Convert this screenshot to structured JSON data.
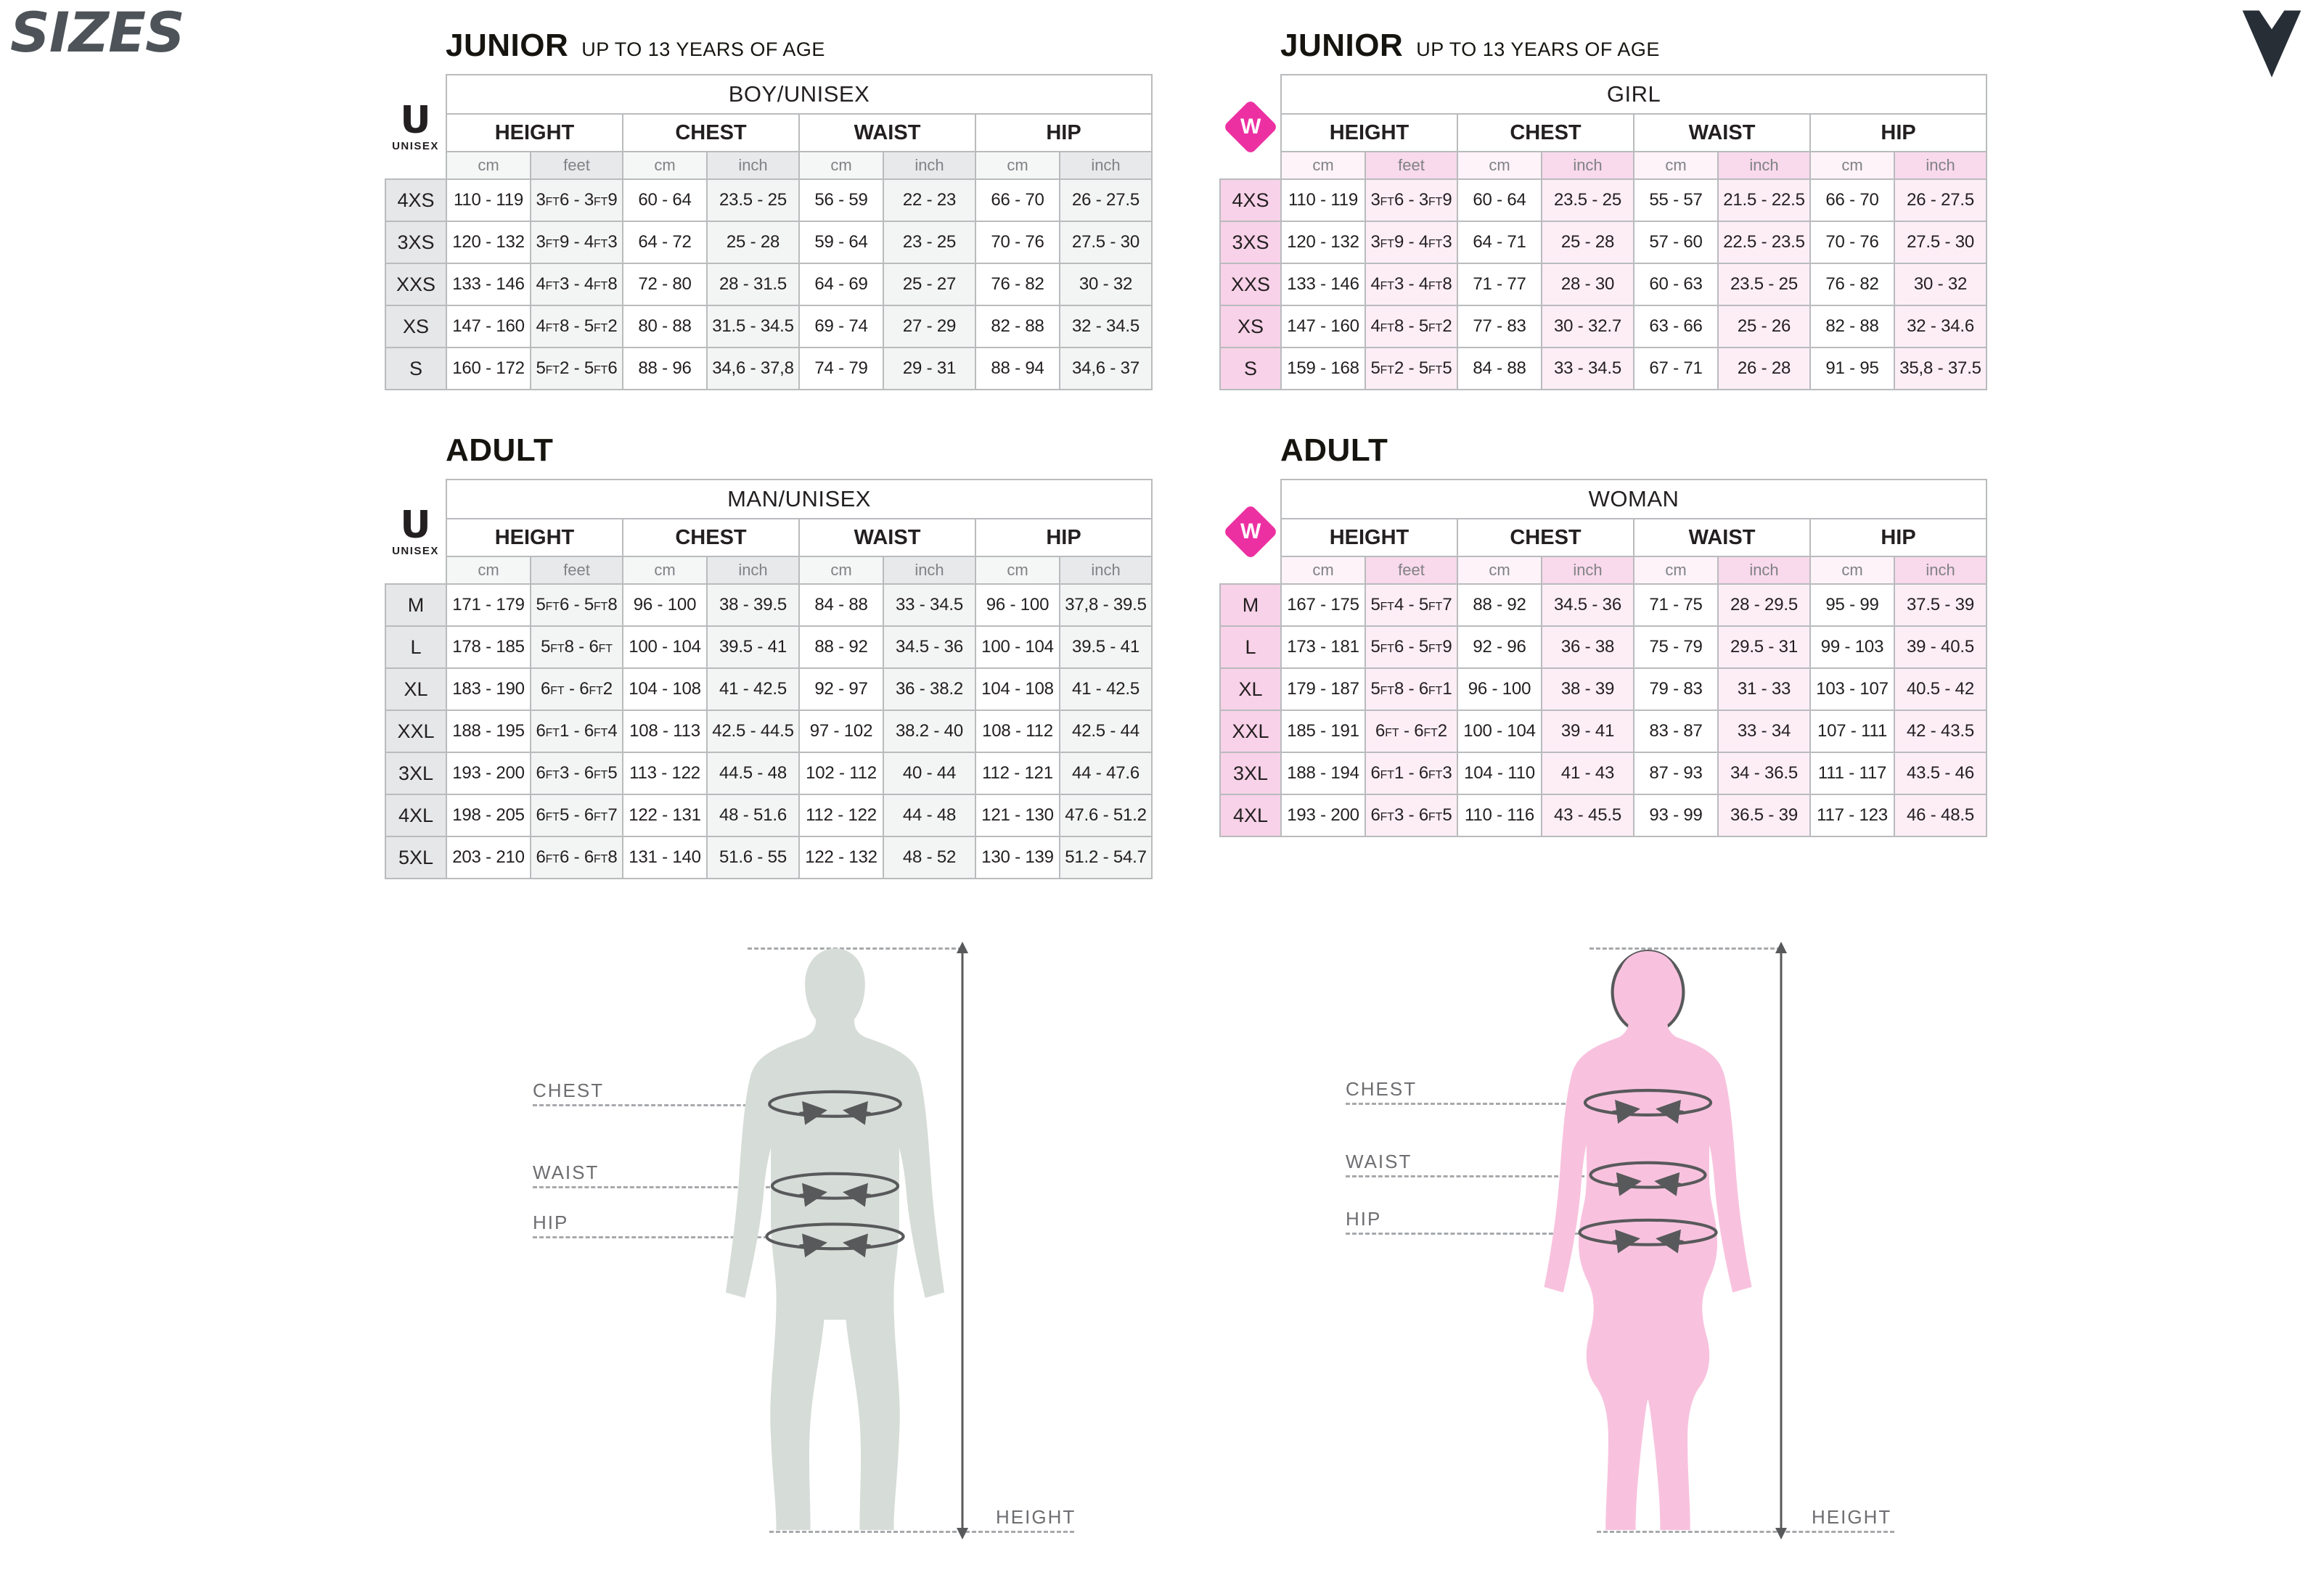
{
  "page": {
    "title": "SIZES"
  },
  "headings": {
    "junior_left": {
      "title": "JUNIOR",
      "subtitle": "UP TO 13 YEARS OF AGE"
    },
    "junior_right": {
      "title": "JUNIOR",
      "subtitle": "UP TO 13 YEARS OF AGE"
    },
    "adult_left": {
      "title": "ADULT"
    },
    "adult_right": {
      "title": "ADULT"
    }
  },
  "badges": {
    "unisex_letter": "U",
    "unisex_label": "UNISEX",
    "woman_letter": "W"
  },
  "colors": {
    "magenta": "#ec30a2",
    "border": "#b9bbbd",
    "dark_stroke": "#58595b",
    "text_dark": "#231f20",
    "text_gray": "#808285",
    "label_gray": "#6d6e71",
    "man_fill": "#d6dcd7",
    "woman_fill": "#f8c2de",
    "gray_label_bg": "#e6e7e8",
    "gray_unit_bg": "#e8e9ea",
    "gray_cell_bg": "#f3f4f4",
    "pink_label_bg": "#f8d2e8",
    "pink_unit_bg": "#f9d9ec",
    "pink_cell_bg": "#fdeef6",
    "sizes_title_color": "#4d5358",
    "logo_color": "#272e36",
    "dash_gray": "#a7a9ac"
  },
  "tables": [
    {
      "id": "boy-unisex",
      "header": "BOY/UNISEX",
      "theme": "gray",
      "groups": [
        "HEIGHT",
        "CHEST",
        "WAIST",
        "HIP"
      ],
      "units": [
        "cm",
        "feet",
        "cm",
        "inch",
        "cm",
        "inch",
        "cm",
        "inch"
      ],
      "rows": [
        {
          "size": "4XS",
          "cells": [
            "110 - 119",
            "3FT6 - 3FT9",
            "60 - 64",
            "23.5 - 25",
            "56 - 59",
            "22 - 23",
            "66 - 70",
            "26 - 27.5"
          ]
        },
        {
          "size": "3XS",
          "cells": [
            "120 - 132",
            "3FT9 - 4FT3",
            "64 - 72",
            "25 - 28",
            "59 - 64",
            "23 - 25",
            "70 - 76",
            "27.5 - 30"
          ]
        },
        {
          "size": "XXS",
          "cells": [
            "133 - 146",
            "4FT3 - 4FT8",
            "72 - 80",
            "28 - 31.5",
            "64 - 69",
            "25 - 27",
            "76 - 82",
            "30 - 32"
          ]
        },
        {
          "size": "XS",
          "cells": [
            "147 - 160",
            "4FT8 - 5FT2",
            "80 - 88",
            "31.5 - 34.5",
            "69 - 74",
            "27 - 29",
            "82 - 88",
            "32 - 34.5"
          ]
        },
        {
          "size": "S",
          "cells": [
            "160 - 172",
            "5FT2 - 5FT6",
            "88 - 96",
            "34,6 - 37,8",
            "74 - 79",
            "29 - 31",
            "88 - 94",
            "34,6 - 37"
          ]
        }
      ]
    },
    {
      "id": "girl",
      "header": "GIRL",
      "theme": "pink",
      "groups": [
        "HEIGHT",
        "CHEST",
        "WAIST",
        "HIP"
      ],
      "units": [
        "cm",
        "feet",
        "cm",
        "inch",
        "cm",
        "inch",
        "cm",
        "inch"
      ],
      "rows": [
        {
          "size": "4XS",
          "cells": [
            "110 - 119",
            "3FT6 - 3FT9",
            "60 - 64",
            "23.5 - 25",
            "55 - 57",
            "21.5 - 22.5",
            "66 - 70",
            "26 - 27.5"
          ]
        },
        {
          "size": "3XS",
          "cells": [
            "120 - 132",
            "3FT9 - 4FT3",
            "64 - 71",
            "25 - 28",
            "57 - 60",
            "22.5 - 23.5",
            "70 - 76",
            "27.5 - 30"
          ]
        },
        {
          "size": "XXS",
          "cells": [
            "133 - 146",
            "4FT3 - 4FT8",
            "71 - 77",
            "28 - 30",
            "60 - 63",
            "23.5 - 25",
            "76 - 82",
            "30 - 32"
          ]
        },
        {
          "size": "XS",
          "cells": [
            "147 - 160",
            "4FT8 - 5FT2",
            "77 - 83",
            "30 - 32.7",
            "63 - 66",
            "25 - 26",
            "82 - 88",
            "32 - 34.6"
          ]
        },
        {
          "size": "S",
          "cells": [
            "159 - 168",
            "5FT2 - 5FT5",
            "84 - 88",
            "33 - 34.5",
            "67 - 71",
            "26 - 28",
            "91 - 95",
            "35,8 - 37.5"
          ]
        }
      ]
    },
    {
      "id": "man-unisex",
      "header": "MAN/UNISEX",
      "theme": "gray",
      "groups": [
        "HEIGHT",
        "CHEST",
        "WAIST",
        "HIP"
      ],
      "units": [
        "cm",
        "feet",
        "cm",
        "inch",
        "cm",
        "inch",
        "cm",
        "inch"
      ],
      "rows": [
        {
          "size": "M",
          "cells": [
            "171 - 179",
            "5FT6 - 5FT8",
            "96 - 100",
            "38 - 39.5",
            "84 - 88",
            "33 - 34.5",
            "96 - 100",
            "37,8 - 39.5"
          ]
        },
        {
          "size": "L",
          "cells": [
            "178 - 185",
            "5FT8 - 6FT",
            "100 - 104",
            "39.5 - 41",
            "88 - 92",
            "34.5 - 36",
            "100 - 104",
            "39.5 - 41"
          ]
        },
        {
          "size": "XL",
          "cells": [
            "183 - 190",
            "6FT - 6FT2",
            "104 - 108",
            "41 - 42.5",
            "92 - 97",
            "36 - 38.2",
            "104 - 108",
            "41 - 42.5"
          ]
        },
        {
          "size": "XXL",
          "cells": [
            "188 - 195",
            "6FT1 - 6FT4",
            "108 - 113",
            "42.5 - 44.5",
            "97 - 102",
            "38.2 - 40",
            "108 - 112",
            "42.5 - 44"
          ]
        },
        {
          "size": "3XL",
          "cells": [
            "193 - 200",
            "6FT3 - 6FT5",
            "113 - 122",
            "44.5 - 48",
            "102 - 112",
            "40 - 44",
            "112 - 121",
            "44 - 47.6"
          ]
        },
        {
          "size": "4XL",
          "cells": [
            "198 - 205",
            "6FT5 - 6FT7",
            "122 - 131",
            "48 - 51.6",
            "112 - 122",
            "44 - 48",
            "121 - 130",
            "47.6 - 51.2"
          ]
        },
        {
          "size": "5XL",
          "cells": [
            "203 - 210",
            "6FT6 - 6FT8",
            "131 - 140",
            "51.6 - 55",
            "122 - 132",
            "48 - 52",
            "130 - 139",
            "51.2 - 54.7"
          ]
        }
      ]
    },
    {
      "id": "woman",
      "header": "WOMAN",
      "theme": "pink",
      "groups": [
        "HEIGHT",
        "CHEST",
        "WAIST",
        "HIP"
      ],
      "units": [
        "cm",
        "feet",
        "cm",
        "inch",
        "cm",
        "inch",
        "cm",
        "inch"
      ],
      "rows": [
        {
          "size": "M",
          "cells": [
            "167 - 175",
            "5FT4 - 5FT7",
            "88 - 92",
            "34.5 - 36",
            "71 - 75",
            "28 - 29.5",
            "95 - 99",
            "37.5 - 39"
          ]
        },
        {
          "size": "L",
          "cells": [
            "173 - 181",
            "5FT6 - 5FT9",
            "92 - 96",
            "36 - 38",
            "75 - 79",
            "29.5 - 31",
            "99 - 103",
            "39 - 40.5"
          ]
        },
        {
          "size": "XL",
          "cells": [
            "179 - 187",
            "5FT8 - 6FT1",
            "96 - 100",
            "38 - 39",
            "79 - 83",
            "31 - 33",
            "103 - 107",
            "40.5 - 42"
          ]
        },
        {
          "size": "XXL",
          "cells": [
            "185 - 191",
            "6FT - 6FT2",
            "100 - 104",
            "39 - 41",
            "83 - 87",
            "33 - 34",
            "107 - 111",
            "42 - 43.5"
          ]
        },
        {
          "size": "3XL",
          "cells": [
            "188 - 194",
            "6FT1 - 6FT3",
            "104 - 110",
            "41 - 43",
            "87 - 93",
            "34 - 36.5",
            "111 - 117",
            "43.5 - 46"
          ]
        },
        {
          "size": "4XL",
          "cells": [
            "193 - 200",
            "6FT3 - 6FT5",
            "110 - 116",
            "43 - 45.5",
            "93 - 99",
            "36.5 - 39",
            "117 - 123",
            "46 - 48.5"
          ]
        }
      ]
    }
  ],
  "figures": {
    "man": {
      "chest": "CHEST",
      "waist": "WAIST",
      "hip": "HIP",
      "height": "HEIGHT"
    },
    "woman": {
      "chest": "CHEST",
      "waist": "WAIST",
      "hip": "HIP",
      "height": "HEIGHT"
    }
  }
}
